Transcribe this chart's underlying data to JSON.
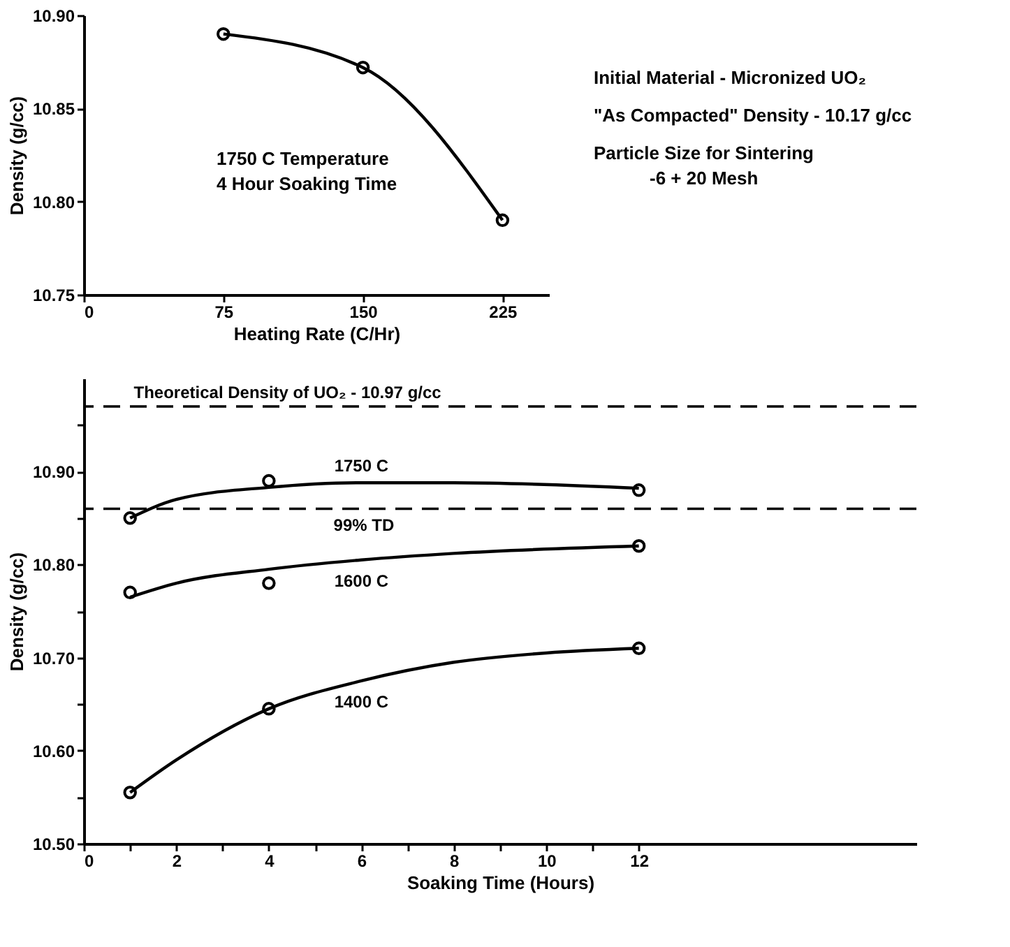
{
  "chart_data": [
    {
      "type": "line",
      "xlabel": "Heating Rate (C/Hr)",
      "ylabel": "Density (g/cc)",
      "xlim": [
        0,
        250
      ],
      "ylim": [
        10.75,
        10.9
      ],
      "xticks": [
        0,
        75,
        150,
        225
      ],
      "yticks": [
        10.75,
        {
          "value": 10.8,
          "label": "10.80"
        },
        10.85,
        {
          "value": 10.9,
          "label": "10.90"
        }
      ],
      "grid": false,
      "marker": "circle",
      "line_style": "solid",
      "series": [
        {
          "color": "#000000",
          "x": [
            75,
            150,
            225
          ],
          "values": [
            10.89,
            10.872,
            10.79
          ]
        }
      ],
      "annotations": [
        "1750 C Temperature",
        "4 Hour Soaking Time",
        "Initial Material - Micronized UO₂",
        "\"As Compacted\" Density - 10.17 g/cc",
        "Particle Size for Sintering",
        "-6 + 20 Mesh"
      ]
    },
    {
      "type": "line",
      "xlabel": "Soaking Time (Hours)",
      "ylabel": "Density (g/cc)",
      "xlim": [
        0,
        18
      ],
      "ylim": [
        10.5,
        11.0
      ],
      "xticks": [
        0,
        {
          "value": 1,
          "label": null
        },
        2,
        {
          "value": 3,
          "label": null
        },
        4,
        {
          "value": 5,
          "label": null
        },
        6,
        {
          "value": 7,
          "label": null
        },
        8,
        {
          "value": 9,
          "label": null
        },
        10,
        {
          "value": 11,
          "label": null
        },
        12
      ],
      "yticks": [
        {
          "value": 10.5,
          "label": "10.50"
        },
        {
          "value": 10.55,
          "label": null
        },
        {
          "value": 10.6,
          "label": "10.60"
        },
        {
          "value": 10.65,
          "label": null
        },
        {
          "value": 10.7,
          "label": "10.70"
        },
        {
          "value": 10.75,
          "label": null
        },
        {
          "value": 10.8,
          "label": "10.80"
        },
        {
          "value": 10.85,
          "label": null
        },
        {
          "value": 10.9,
          "label": "10.90"
        },
        {
          "value": 10.95,
          "label": null
        }
      ],
      "grid": false,
      "line_style": "solid",
      "series": [
        {
          "name": "1750 C",
          "type": "line",
          "marker": "none",
          "color": "#000000",
          "x": [
            1,
            2,
            4,
            6,
            8,
            12
          ],
          "values": [
            10.85,
            10.87,
            10.883,
            10.888,
            10.888,
            10.882
          ]
        },
        {
          "name": "1600 C",
          "type": "line",
          "marker": "none",
          "color": "#000000",
          "x": [
            1,
            2,
            4,
            6,
            8,
            12
          ],
          "values": [
            10.765,
            10.78,
            10.795,
            10.805,
            10.812,
            10.82
          ]
        },
        {
          "name": "1400 C",
          "type": "line",
          "marker": "none",
          "color": "#000000",
          "x": [
            1,
            2,
            4,
            6,
            8,
            10,
            12
          ],
          "values": [
            10.555,
            10.59,
            10.645,
            10.675,
            10.695,
            10.705,
            10.71
          ]
        },
        {
          "type": "scatter",
          "marker": "circle",
          "color": "#000000",
          "x": [
            1,
            4,
            12
          ],
          "values": [
            10.85,
            10.89,
            10.88
          ]
        },
        {
          "type": "scatter",
          "marker": "circle",
          "color": "#000000",
          "x": [
            1,
            4,
            12
          ],
          "values": [
            10.77,
            10.78,
            10.82
          ]
        },
        {
          "type": "scatter",
          "marker": "circle",
          "color": "#000000",
          "x": [
            1,
            4,
            12
          ],
          "values": [
            10.555,
            10.645,
            10.71
          ]
        }
      ],
      "ref_lines": [
        {
          "axis": "y",
          "value": 10.97,
          "label": "Theoretical Density of UO₂ - 10.97 g/cc",
          "line_style": "dashed",
          "color": "#000000"
        },
        {
          "axis": "y",
          "value": 10.86,
          "label": "99% TD",
          "line_style": "dashed",
          "color": "#000000"
        }
      ]
    }
  ]
}
